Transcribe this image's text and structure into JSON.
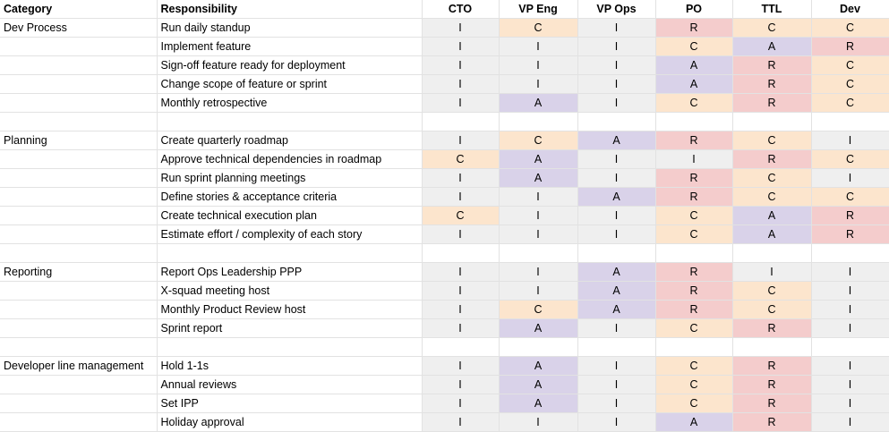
{
  "header": {
    "category": "Category",
    "responsibility": "Responsibility",
    "roles": [
      "CTO",
      "VP Eng",
      "VP Ops",
      "PO",
      "TTL",
      "Dev"
    ]
  },
  "sections": [
    {
      "category": "Dev Process",
      "rows": [
        {
          "responsibility": "Run daily standup",
          "values": [
            "I",
            "C",
            "I",
            "R",
            "C",
            "C"
          ]
        },
        {
          "responsibility": "Implement feature",
          "values": [
            "I",
            "I",
            "I",
            "C",
            "A",
            "R"
          ]
        },
        {
          "responsibility": "Sign-off feature ready for deployment",
          "values": [
            "I",
            "I",
            "I",
            "A",
            "R",
            "C"
          ]
        },
        {
          "responsibility": "Change scope of feature or sprint",
          "values": [
            "I",
            "I",
            "I",
            "A",
            "R",
            "C"
          ]
        },
        {
          "responsibility": "Monthly retrospective",
          "values": [
            "I",
            "A",
            "I",
            "C",
            "R",
            "C"
          ]
        }
      ]
    },
    {
      "category": "Planning",
      "rows": [
        {
          "responsibility": "Create quarterly roadmap",
          "values": [
            "I",
            "C",
            "A",
            "R",
            "C",
            "I"
          ]
        },
        {
          "responsibility": "Approve technical dependencies in roadmap",
          "values": [
            "C",
            "A",
            "I",
            "I",
            "R",
            "C"
          ]
        },
        {
          "responsibility": "Run sprint planning meetings",
          "values": [
            "I",
            "A",
            "I",
            "R",
            "C",
            "I"
          ]
        },
        {
          "responsibility": "Define stories & acceptance criteria",
          "values": [
            "I",
            "I",
            "A",
            "R",
            "C",
            "C"
          ]
        },
        {
          "responsibility": "Create technical execution plan",
          "values": [
            "C",
            "I",
            "I",
            "C",
            "A",
            "R"
          ]
        },
        {
          "responsibility": "Estimate effort / complexity of each story",
          "values": [
            "I",
            "I",
            "I",
            "C",
            "A",
            "R"
          ]
        }
      ]
    },
    {
      "category": "Reporting",
      "rows": [
        {
          "responsibility": "Report Ops Leadership PPP",
          "values": [
            "I",
            "I",
            "A",
            "R",
            "I",
            "I"
          ]
        },
        {
          "responsibility": "X-squad meeting host",
          "values": [
            "I",
            "I",
            "A",
            "R",
            "C",
            "I"
          ]
        },
        {
          "responsibility": "Monthly Product Review host",
          "values": [
            "I",
            "C",
            "A",
            "R",
            "C",
            "I"
          ]
        },
        {
          "responsibility": "Sprint report",
          "values": [
            "I",
            "A",
            "I",
            "C",
            "R",
            "I"
          ]
        }
      ]
    },
    {
      "category": "Developer line management",
      "rows": [
        {
          "responsibility": "Hold 1-1s",
          "values": [
            "I",
            "A",
            "I",
            "C",
            "R",
            "I"
          ]
        },
        {
          "responsibility": "Annual reviews",
          "values": [
            "I",
            "A",
            "I",
            "C",
            "R",
            "I"
          ]
        },
        {
          "responsibility": "Set IPP",
          "values": [
            "I",
            "A",
            "I",
            "C",
            "R",
            "I"
          ]
        },
        {
          "responsibility": "Holiday approval",
          "values": [
            "I",
            "I",
            "I",
            "A",
            "R",
            "I"
          ]
        }
      ]
    }
  ],
  "colors": {
    "I": "#efefef",
    "C": "#fce5cd",
    "A": "#d9d2e9",
    "R": "#f4cccc"
  }
}
